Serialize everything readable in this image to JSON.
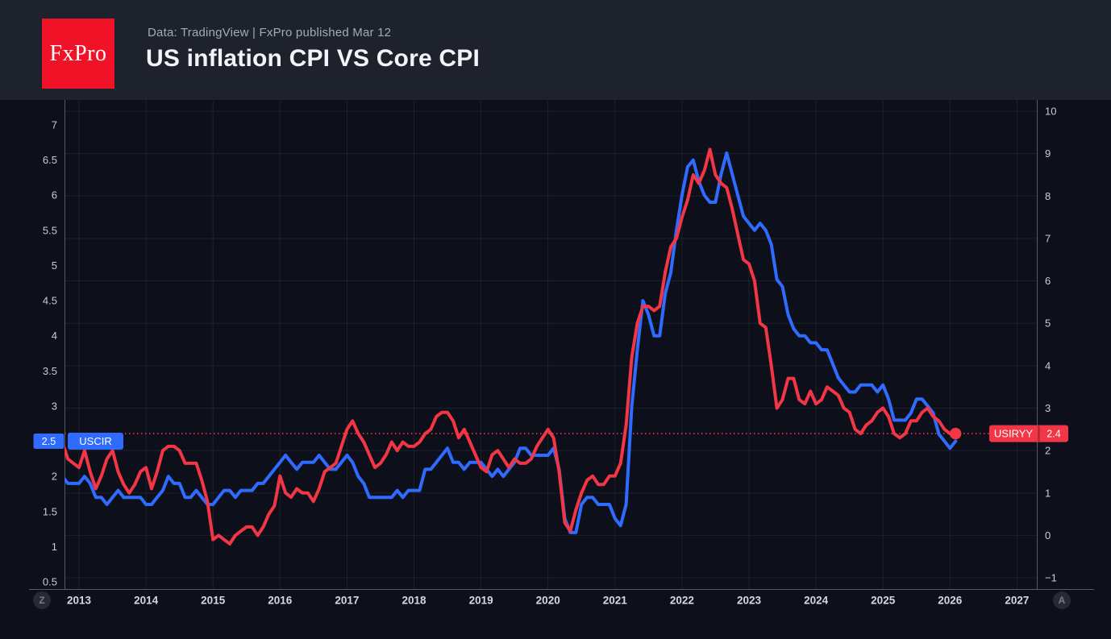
{
  "header": {
    "logo_text": "FxPro",
    "source_line": "Data: TradingView | FxPro published Mar 12",
    "title": "US inflation CPI VS Core CPI"
  },
  "colors": {
    "page_background": "#0d101a",
    "header_background": "#1e222d",
    "logo_red": "#f01226",
    "core_cpi_blue": "#2f6bff",
    "cpi_red": "#f23645",
    "axis_text": "#c7ccd6",
    "year_text": "#d5d8df",
    "grid_line": "rgba(170,180,205,0.10)",
    "axis_border": "#565a64",
    "badge_text": "#ffffff"
  },
  "chart_data": {
    "type": "line",
    "title": "US inflation CPI VS Core CPI",
    "frequency": "monthly",
    "start_year": 2012,
    "start_month": 10,
    "x_ticks": [
      2013,
      2014,
      2015,
      2016,
      2017,
      2018,
      2019,
      2020,
      2021,
      2022,
      2023,
      2024,
      2025,
      2026,
      2027
    ],
    "left_axis": {
      "ticks": [
        7,
        6.5,
        6,
        5.5,
        5,
        4.5,
        4,
        3.5,
        3,
        2.5,
        2,
        1.5,
        1,
        0.5
      ],
      "range_note": "left price scale, 0.5 step"
    },
    "right_axis": {
      "ticks": [
        10,
        9,
        8,
        7,
        6,
        5,
        4,
        3,
        2,
        1,
        0,
        -1
      ],
      "range_note": "right price scale, 1.0 step"
    },
    "grid": {
      "horizontal": "right-axis integers",
      "vertical": "year boundaries"
    },
    "time_axis": {
      "left_button": "Z",
      "right_button": "A"
    },
    "series": [
      {
        "name": "USCIR",
        "axis": "left",
        "color": "#2f6bff",
        "current_value": 2.5,
        "current_label": "2.5",
        "show_label_badge_at_start": true,
        "values": [
          2.0,
          1.9,
          1.9,
          1.9,
          2.0,
          1.9,
          1.7,
          1.7,
          1.6,
          1.7,
          1.8,
          1.7,
          1.7,
          1.7,
          1.7,
          1.6,
          1.6,
          1.7,
          1.8,
          2.0,
          1.9,
          1.9,
          1.7,
          1.7,
          1.8,
          1.7,
          1.6,
          1.6,
          1.7,
          1.8,
          1.8,
          1.7,
          1.8,
          1.8,
          1.8,
          1.9,
          1.9,
          2.0,
          2.1,
          2.2,
          2.3,
          2.2,
          2.1,
          2.2,
          2.2,
          2.2,
          2.3,
          2.2,
          2.1,
          2.1,
          2.2,
          2.3,
          2.2,
          2.0,
          1.9,
          1.7,
          1.7,
          1.7,
          1.7,
          1.7,
          1.8,
          1.7,
          1.8,
          1.8,
          1.8,
          2.1,
          2.1,
          2.2,
          2.3,
          2.4,
          2.2,
          2.2,
          2.1,
          2.2,
          2.2,
          2.2,
          2.1,
          2.0,
          2.1,
          2.0,
          2.1,
          2.2,
          2.4,
          2.4,
          2.3,
          2.3,
          2.3,
          2.3,
          2.4,
          2.1,
          1.4,
          1.2,
          1.2,
          1.6,
          1.7,
          1.7,
          1.6,
          1.6,
          1.6,
          1.4,
          1.3,
          1.6,
          3.0,
          3.8,
          4.5,
          4.3,
          4.0,
          4.0,
          4.6,
          4.9,
          5.5,
          6.0,
          6.4,
          6.5,
          6.2,
          6.0,
          5.9,
          5.9,
          6.3,
          6.6,
          6.3,
          6.0,
          5.7,
          5.6,
          5.5,
          5.6,
          5.5,
          5.3,
          4.8,
          4.7,
          4.3,
          4.1,
          4.0,
          4.0,
          3.9,
          3.9,
          3.8,
          3.8,
          3.6,
          3.4,
          3.3,
          3.2,
          3.2,
          3.3,
          3.3,
          3.3,
          3.2,
          3.3,
          3.1,
          2.8,
          2.8,
          2.8,
          2.9,
          3.1,
          3.1,
          3.0,
          2.9,
          2.6,
          2.5,
          2.4,
          2.5
        ]
      },
      {
        "name": "USIRYY",
        "axis": "right",
        "color": "#f23645",
        "current_value": 2.4,
        "current_label": "2.4",
        "current_value_dotted_line": true,
        "end_marker_dot": true,
        "values": [
          2.2,
          1.8,
          1.7,
          1.6,
          2.0,
          1.5,
          1.1,
          1.4,
          1.8,
          2.0,
          1.5,
          1.2,
          1.0,
          1.2,
          1.5,
          1.6,
          1.1,
          1.5,
          2.0,
          2.1,
          2.1,
          2.0,
          1.7,
          1.7,
          1.7,
          1.3,
          0.8,
          -0.1,
          0.0,
          -0.1,
          -0.2,
          0.0,
          0.1,
          0.2,
          0.2,
          0.0,
          0.2,
          0.5,
          0.7,
          1.4,
          1.0,
          0.9,
          1.1,
          1.0,
          1.0,
          0.8,
          1.1,
          1.5,
          1.6,
          1.7,
          2.1,
          2.5,
          2.7,
          2.4,
          2.2,
          1.9,
          1.6,
          1.7,
          1.9,
          2.2,
          2.0,
          2.2,
          2.1,
          2.1,
          2.2,
          2.4,
          2.5,
          2.8,
          2.9,
          2.9,
          2.7,
          2.3,
          2.5,
          2.2,
          1.9,
          1.6,
          1.5,
          1.9,
          2.0,
          1.8,
          1.6,
          1.8,
          1.7,
          1.7,
          1.8,
          2.1,
          2.3,
          2.5,
          2.3,
          1.5,
          0.3,
          0.1,
          0.6,
          1.0,
          1.3,
          1.4,
          1.2,
          1.2,
          1.4,
          1.4,
          1.7,
          2.6,
          4.2,
          5.0,
          5.4,
          5.4,
          5.3,
          5.4,
          6.2,
          6.8,
          7.0,
          7.5,
          7.9,
          8.5,
          8.3,
          8.6,
          9.1,
          8.5,
          8.3,
          8.2,
          7.7,
          7.1,
          6.5,
          6.4,
          6.0,
          5.0,
          4.9,
          4.0,
          3.0,
          3.2,
          3.7,
          3.7,
          3.2,
          3.1,
          3.4,
          3.1,
          3.2,
          3.5,
          3.4,
          3.3,
          3.0,
          2.9,
          2.5,
          2.4,
          2.6,
          2.7,
          2.9,
          3.0,
          2.8,
          2.4,
          2.3,
          2.4,
          2.7,
          2.7,
          2.9,
          3.0,
          2.8,
          2.7,
          2.5,
          2.4,
          2.4
        ]
      }
    ]
  }
}
